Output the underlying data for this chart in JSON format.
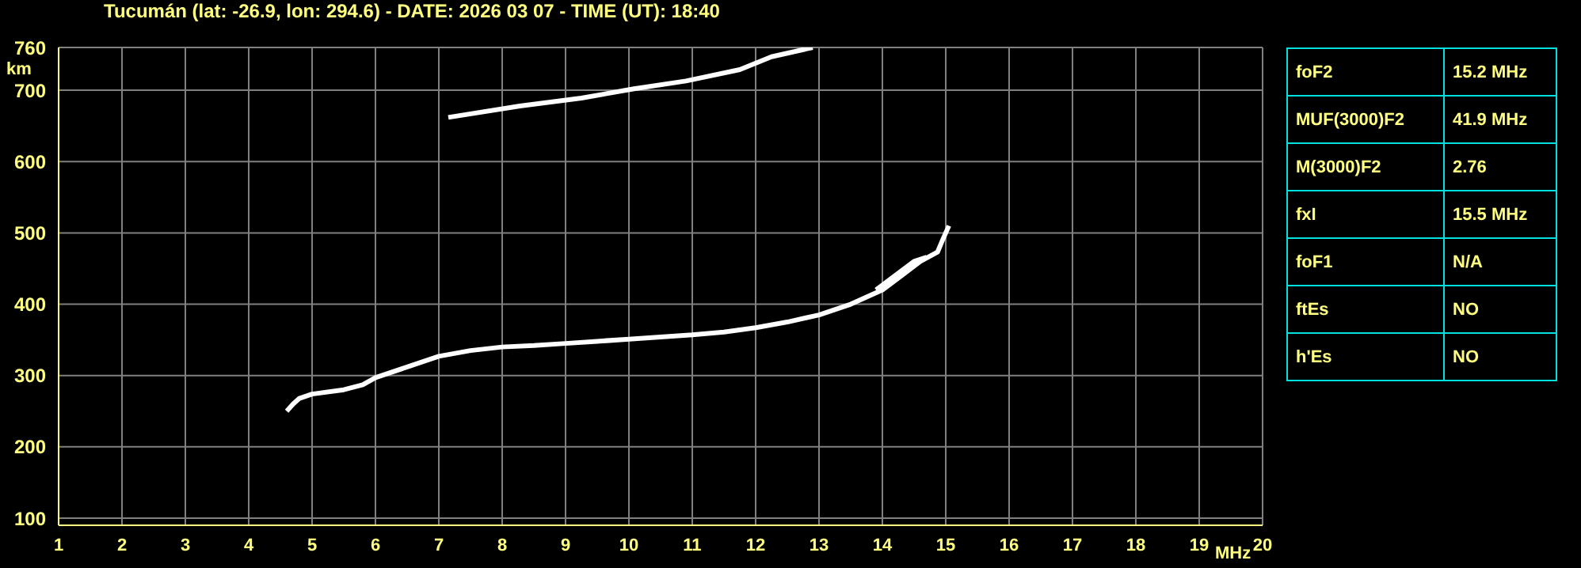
{
  "chart_data": [
    {
      "type": "line",
      "title": "Tucumán (lat: -26.9, lon: 294.6) - DATE: 2026 03 07 - TIME (UT): 18:40",
      "xlabel": "MHz",
      "ylabel": "km",
      "xlim": [
        1,
        20
      ],
      "xticks": [
        1,
        2,
        3,
        4,
        5,
        6,
        7,
        8,
        9,
        10,
        11,
        12,
        13,
        14,
        15,
        16,
        17,
        18,
        19,
        20
      ],
      "ylim": [
        90,
        760
      ],
      "yticks": [
        100,
        200,
        300,
        400,
        500,
        600,
        700,
        760
      ],
      "grid": true,
      "legend": false,
      "marker": "none",
      "line_style": "solid",
      "series": [
        {
          "color": "#ffffff",
          "x": [
            4.6,
            4.7,
            4.8,
            5,
            5.5,
            5.8,
            6,
            6.5,
            7,
            7.5,
            8,
            8.5,
            9,
            9.5,
            10,
            10.5,
            11,
            11.5,
            12,
            12.5,
            13,
            13.5,
            14,
            14.3,
            14.6,
            14.87,
            14.95,
            15.05
          ],
          "values": [
            250,
            260,
            268,
            274,
            280,
            287,
            297,
            312,
            327,
            335,
            340,
            342,
            345,
            348,
            351,
            354,
            357,
            361,
            367,
            375,
            385,
            400,
            420,
            440,
            460,
            473,
            490,
            510
          ]
        },
        {
          "color": "#ffffff",
          "x": [
            13.9,
            14.2,
            14.5,
            14.7
          ],
          "values": [
            420,
            440,
            460,
            466
          ]
        },
        {
          "color": "#ffffff",
          "x": [
            7.15,
            8.28,
            9.25,
            10.08,
            10.9,
            11.75,
            12.25,
            12.9
          ],
          "values": [
            662,
            678,
            689,
            702,
            713,
            729,
            747,
            760
          ]
        }
      ]
    },
    {
      "type": "other",
      "categories": [
        "foF2",
        "MUF(3000)F2",
        "M(3000)F2",
        "fxI",
        "foF1",
        "ftEs",
        "h'Es"
      ],
      "value_labels": [
        "15.2 MHz",
        "41.9 MHz",
        "2.76",
        "15.5 MHz",
        "N/A",
        "NO",
        "NO"
      ]
    }
  ]
}
